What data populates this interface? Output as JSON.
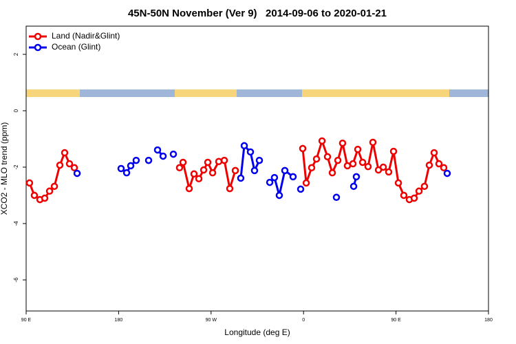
{
  "chart_data": {
    "type": "line",
    "title": "45N-50N November (Ver 9)   2014-09-06 to 2020-01-21",
    "xlabel": "Longitude (deg E)",
    "ylabel": "XCO2 - MLO trend (ppm)",
    "xlim": [
      90,
      540
    ],
    "xticks": [
      {
        "value": 90,
        "label": "90 E"
      },
      {
        "value": 180,
        "label": "180"
      },
      {
        "value": 270,
        "label": "90 W"
      },
      {
        "value": 360,
        "label": "0"
      },
      {
        "value": 450,
        "label": "90 E"
      },
      {
        "value": 540,
        "label": "180"
      }
    ],
    "ylim": [
      -7.1,
      3
    ],
    "yticks": [
      -6,
      -4,
      -2,
      0,
      2
    ],
    "legend": "top-left",
    "series": [
      {
        "name": "Land (Nadir&Glint)",
        "color": "#ee0000",
        "x": [
          93.3,
          98.0,
          103.4,
          108.1,
          112.8,
          117.5,
          122.8,
          127.5,
          132.2,
          136.9,
          null,
          239.3,
          242.7,
          248.7,
          253.4,
          258.1,
          262.8,
          266.8,
          271.5,
          277.5,
          282.9,
          288.2,
          293.6,
          null,
          359.2,
          362.6,
          367.9,
          372.6,
          378.0,
          383.3,
          388.0,
          393.4,
          398.0,
          402.7,
          408.1,
          412.8,
          417.5,
          422.8,
          427.5,
          432.9,
          437.6,
          442.9,
          447.6,
          452.3,
          457.6,
          463.0,
          467.7,
          472.4,
          477.7,
          482.4,
          487.1,
          491.8,
          496.5
        ],
        "values": [
          -2.56,
          -3.0,
          -3.15,
          -3.1,
          -2.85,
          -2.68,
          -1.93,
          -1.49,
          -1.88,
          -2.02,
          null,
          -2.02,
          -1.83,
          -2.76,
          -2.24,
          -2.41,
          -2.1,
          -1.83,
          -2.2,
          -1.8,
          -1.76,
          -2.76,
          -2.12,
          null,
          -1.34,
          -2.56,
          -2.02,
          -1.71,
          -1.07,
          -1.63,
          -2.2,
          -1.76,
          -1.15,
          -1.95,
          -1.88,
          -1.37,
          -1.83,
          -1.98,
          -1.12,
          -2.1,
          -2.0,
          -2.17,
          -1.44,
          -2.56,
          -3.0,
          -3.15,
          -3.1,
          -2.85,
          -2.68,
          -1.93,
          -1.49,
          -1.88,
          -2.02
        ]
      },
      {
        "name": "Ocean (Glint)",
        "color": "#0000ee",
        "x": [
          139.6,
          null,
          182.4,
          187.8,
          191.8,
          197.1,
          null,
          209.2,
          null,
          217.9,
          223.3,
          null,
          233.3,
          null,
          298.9,
          302.3,
          308.3,
          312.3,
          317.0,
          null,
          327.1,
          331.7,
          336.4,
          341.8,
          349.8,
          null,
          357.2,
          null,
          392.0,
          null,
          408.8,
          411.4,
          null,
          499.8
        ],
        "values": [
          -2.22,
          null,
          -2.05,
          -2.2,
          -1.95,
          -1.76,
          null,
          -1.76,
          null,
          -1.39,
          -1.61,
          null,
          -1.54,
          null,
          -2.39,
          -1.24,
          -1.46,
          -2.12,
          -1.76,
          null,
          -2.54,
          -2.37,
          -3.0,
          -2.12,
          -2.34,
          null,
          -2.78,
          null,
          -3.07,
          null,
          -2.68,
          -2.34,
          null,
          -2.22
        ]
      }
    ]
  }
}
